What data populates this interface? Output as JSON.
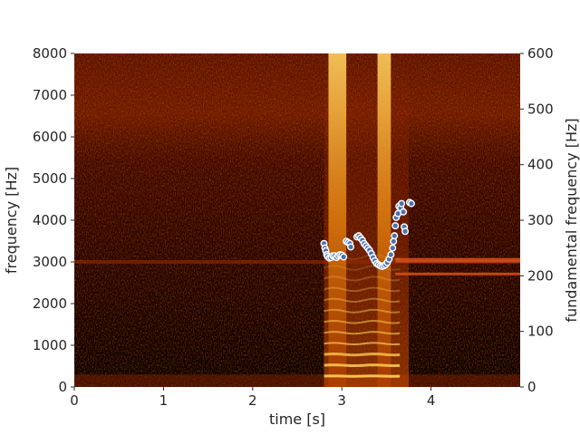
{
  "chart_data": {
    "type": "spectrogram with pitch overlay",
    "title": "",
    "xlabel": "time [s]",
    "ylabel": "frequency [Hz]",
    "y2label": "fundamental frequency [Hz]",
    "xlim": [
      0,
      5.0
    ],
    "ylim": [
      0,
      8000
    ],
    "y2lim": [
      0,
      600
    ],
    "xticks": [
      0,
      1,
      2,
      3,
      4
    ],
    "yticks": [
      0,
      1000,
      2000,
      3000,
      4000,
      5000,
      6000,
      7000,
      8000
    ],
    "y2ticks": [
      0,
      100,
      200,
      300,
      400,
      500,
      600
    ],
    "grid": false,
    "colormap": "afmhot",
    "spectrogram_features": {
      "low_band_noise_hz": [
        0,
        300
      ],
      "voiced_region_s": [
        2.8,
        3.75
      ],
      "broadband_bursts_s": [
        2.85,
        3.05,
        3.4,
        3.55
      ],
      "tonal_line_hz": 3000,
      "tonal_line_span_s": [
        0,
        5.0
      ],
      "shifted_line_after_s": 3.6,
      "shifted_line_hz": [
        2700,
        3050
      ]
    },
    "series": [
      {
        "marker_color": "#4c72b0",
        "points": [
          [
            2.8,
            258
          ],
          [
            2.81,
            250
          ],
          [
            2.82,
            245
          ],
          [
            2.83,
            238
          ],
          [
            2.84,
            235
          ],
          [
            2.86,
            232
          ],
          [
            2.88,
            233
          ],
          [
            2.9,
            236
          ],
          [
            2.92,
            236
          ],
          [
            2.94,
            233
          ],
          [
            2.96,
            236
          ],
          [
            2.98,
            238
          ],
          [
            3.0,
            237
          ],
          [
            3.02,
            234
          ],
          [
            3.05,
            262
          ],
          [
            3.07,
            260
          ],
          [
            3.09,
            258
          ],
          [
            3.1,
            252
          ],
          [
            3.17,
            270
          ],
          [
            3.19,
            272
          ],
          [
            3.21,
            268
          ],
          [
            3.23,
            264
          ],
          [
            3.25,
            258
          ],
          [
            3.27,
            254
          ],
          [
            3.29,
            250
          ],
          [
            3.31,
            246
          ],
          [
            3.33,
            240
          ],
          [
            3.35,
            233
          ],
          [
            3.37,
            227
          ],
          [
            3.39,
            222
          ],
          [
            3.41,
            220
          ],
          [
            3.43,
            218
          ],
          [
            3.45,
            217
          ],
          [
            3.47,
            218
          ],
          [
            3.49,
            220
          ],
          [
            3.51,
            224
          ],
          [
            3.53,
            230
          ],
          [
            3.55,
            238
          ],
          [
            3.57,
            250
          ],
          [
            3.58,
            262
          ],
          [
            3.59,
            272
          ],
          [
            3.6,
            290
          ],
          [
            3.61,
            305
          ],
          [
            3.63,
            312
          ],
          [
            3.64,
            325
          ],
          [
            3.66,
            322
          ],
          [
            3.67,
            330
          ],
          [
            3.69,
            315
          ],
          [
            3.7,
            288
          ],
          [
            3.71,
            280
          ],
          [
            3.76,
            332
          ],
          [
            3.78,
            330
          ]
        ]
      }
    ]
  }
}
